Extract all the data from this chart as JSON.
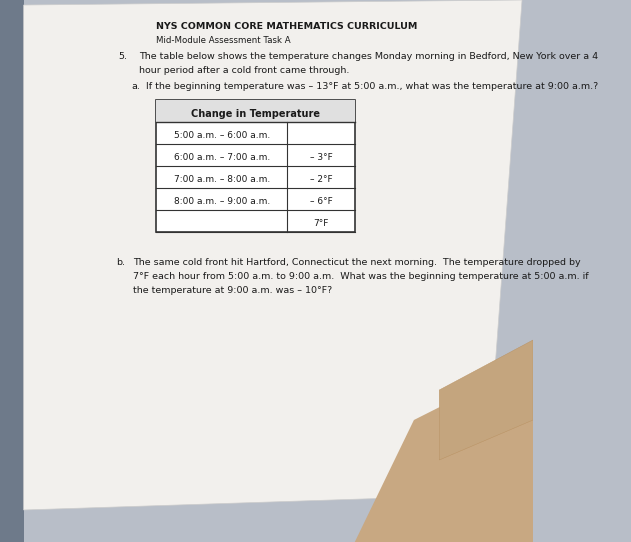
{
  "bg_color": "#b8bec8",
  "paper_color": "#f2f0ed",
  "left_bar_color": "#6e7a8a",
  "title_line1": "NYS COMMON CORE MATHEMATICS CURRICULUM",
  "title_line2": "Mid-Module Assessment Task A",
  "question_num": "5.",
  "question_line1": "The table below shows the temperature changes Monday morning in Bedford, New York over a 4",
  "question_line2": "hour period after a cold front came through.",
  "part_a_label": "a.",
  "part_a_text": "If the beginning temperature was – 13°F at 5:00 a.m., what was the temperature at 9:00 a.m.?",
  "table_header": "Change in Temperature",
  "table_rows": [
    [
      "5:00 a.m. – 6:00 a.m.",
      ""
    ],
    [
      "6:00 a.m. – 7:00 a.m.",
      "– 3°F"
    ],
    [
      "7:00 a.m. – 8:00 a.m.",
      "– 2°F"
    ],
    [
      "8:00 a.m. – 9:00 a.m.",
      "– 6°F"
    ],
    [
      "",
      "7°F"
    ]
  ],
  "part_b_label": "b.",
  "part_b_line1": "The same cold front hit Hartford, Connecticut the next morning.  The temperature dropped by",
  "part_b_line2": "7°F each hour from 5:00 a.m. to 9:00 a.m.  What was the beginning temperature at 5:00 a.m. if",
  "part_b_line3": "the temperature at 9:00 a.m. was – 10°F?"
}
